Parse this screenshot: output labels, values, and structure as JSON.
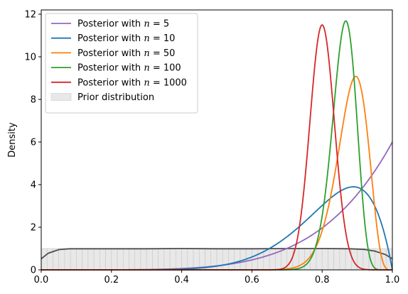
{
  "chart_data": {
    "type": "line",
    "title": "",
    "xlabel": "",
    "ylabel": "Density",
    "xlim": [
      0.0,
      1.0
    ],
    "ylim": [
      0,
      12.2
    ],
    "xticks": [
      0.0,
      0.2,
      0.4,
      0.6,
      0.8,
      1.0
    ],
    "xtick_labels": [
      "0.0",
      "0.2",
      "0.4",
      "0.6",
      "0.8",
      "1.0"
    ],
    "yticks": [
      0,
      2,
      4,
      6,
      8,
      10,
      12
    ],
    "ytick_labels": [
      "0",
      "2",
      "4",
      "6",
      "8",
      "10",
      "12"
    ],
    "grid": false,
    "legend_position": "top-left",
    "series": [
      {
        "name": "Posterior with n = 5",
        "legend_prefix": "Posterior with ",
        "legend_var": "n",
        "legend_eq": " = 5",
        "color": "#9467bd",
        "kind": "beta",
        "a": 6,
        "b": 1
      },
      {
        "name": "Posterior with n = 10",
        "legend_prefix": "Posterior with ",
        "legend_var": "n",
        "legend_eq": " = 10",
        "color": "#1f77b4",
        "kind": "beta",
        "a": 9,
        "b": 2
      },
      {
        "name": "Posterior with n = 50",
        "legend_prefix": "Posterior with ",
        "legend_var": "n",
        "legend_eq": " = 50",
        "color": "#ff7f0e",
        "kind": "beta",
        "a": 44,
        "b": 6
      },
      {
        "name": "Posterior with n = 100",
        "legend_prefix": "Posterior with ",
        "legend_var": "n",
        "legend_eq": " = 100",
        "color": "#2ca02c",
        "kind": "beta",
        "a": 86,
        "b": 14
      },
      {
        "name": "Posterior with n = 1000",
        "legend_prefix": "Posterior with ",
        "legend_var": "n",
        "legend_eq": " = 1000",
        "color": "#d62728",
        "kind": "normal",
        "mean": 0.8,
        "sd": 0.0347
      }
    ],
    "prior": {
      "name": "Prior distribution",
      "kind": "histogram",
      "bins": 60,
      "density": 1.0,
      "fill_color": "#e8e8e8",
      "kde_color": "#4d4d4d",
      "kde_x": [
        0.0,
        0.02,
        0.05,
        0.08,
        0.12,
        0.2,
        0.3,
        0.4,
        0.5,
        0.6,
        0.7,
        0.8,
        0.88,
        0.92,
        0.95,
        0.98,
        1.0
      ],
      "kde_y": [
        0.52,
        0.78,
        0.95,
        0.99,
        0.99,
        0.99,
        0.99,
        1.0,
        0.99,
        0.99,
        1.0,
        1.0,
        0.99,
        0.96,
        0.88,
        0.72,
        0.52
      ]
    }
  }
}
